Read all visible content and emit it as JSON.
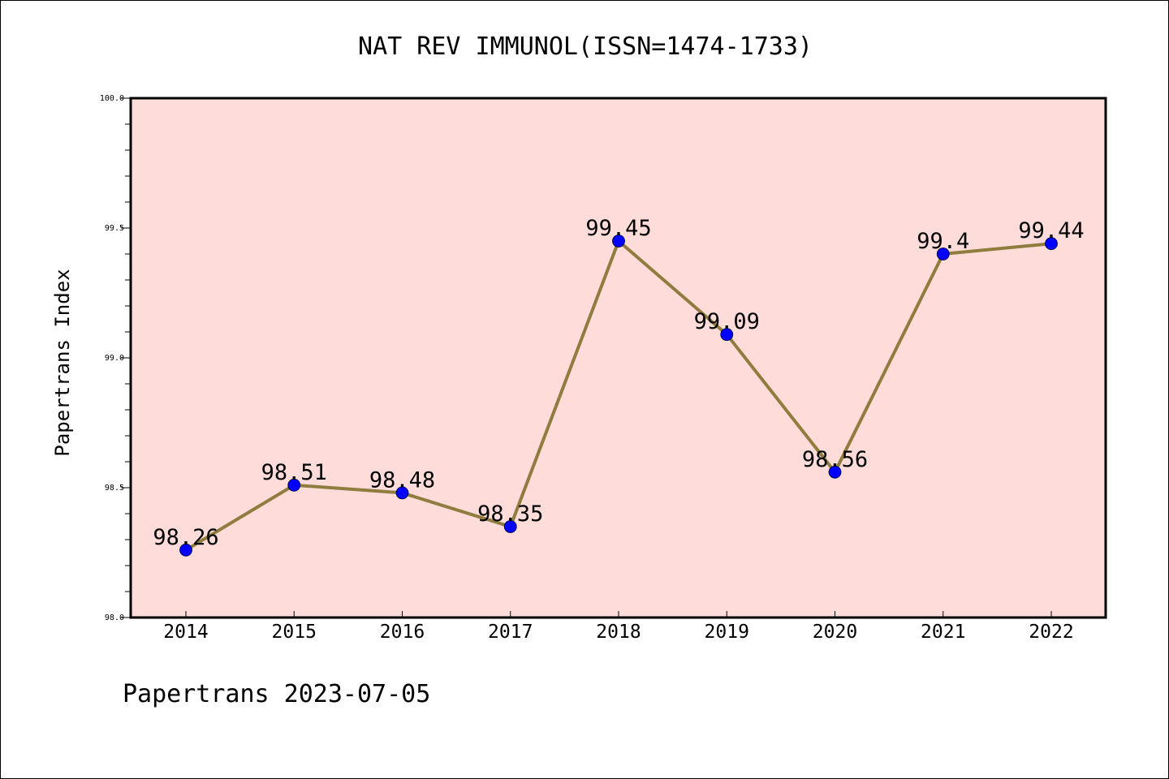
{
  "chart_data": {
    "type": "line",
    "title": "NAT REV IMMUNOL(ISSN=1474-1733)",
    "xlabel": "",
    "ylabel": "Papertrans Index",
    "x": [
      "2014",
      "2015",
      "2016",
      "2017",
      "2018",
      "2019",
      "2020",
      "2021",
      "2022"
    ],
    "series": [
      {
        "values": [
          98.26,
          98.51,
          98.48,
          98.35,
          99.45,
          99.09,
          98.56,
          99.4,
          99.44
        ],
        "labels": [
          "98.26",
          "98.51",
          "98.48",
          "98.35",
          "99.45",
          "99.09",
          "98.56",
          "99.4",
          "99.44"
        ]
      }
    ],
    "ylim": [
      98.0,
      100.0
    ],
    "yticks": [
      "98.0",
      "98.5",
      "99.0",
      "99.5",
      "100.0"
    ],
    "grid": false,
    "colors": {
      "plot_background": "#fddcd9",
      "line": "#8f7c3e",
      "marker": "#0000ff"
    },
    "footer": "Papertrans 2023-07-05"
  }
}
